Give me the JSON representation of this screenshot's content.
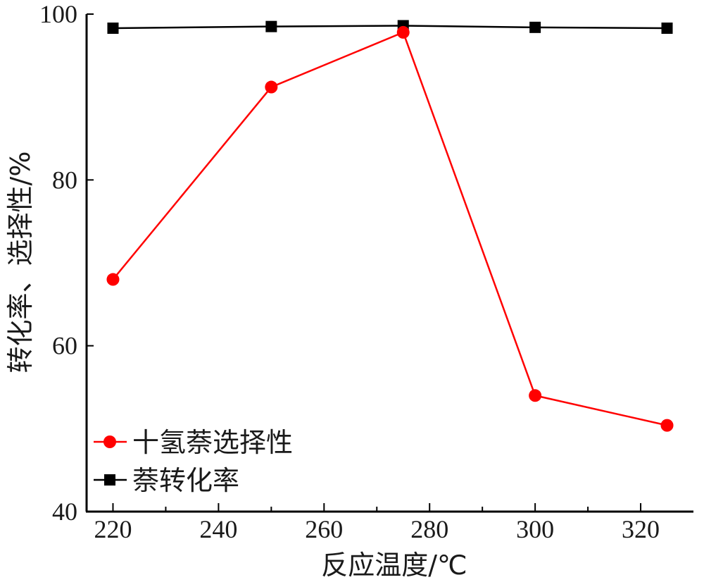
{
  "chart_data": {
    "type": "line",
    "xlabel": "反应温度/℃",
    "ylabel": "转化率、选择性/%",
    "xlim": [
      215,
      330
    ],
    "ylim": [
      40,
      100
    ],
    "x_ticks": [
      "220",
      "240",
      "260",
      "280",
      "300",
      "320"
    ],
    "y_ticks": [
      "40",
      "60",
      "80",
      "100"
    ],
    "x_tick_values": [
      220,
      240,
      260,
      280,
      300,
      320
    ],
    "y_tick_values": [
      40,
      60,
      80,
      100
    ],
    "x_minor_ticks": [
      230,
      250,
      270,
      290,
      310
    ],
    "grid": false,
    "legend_position": "bottom-left",
    "series": [
      {
        "name": "十氢萘选择性",
        "color": "#ff0000",
        "marker": "circle",
        "x": [
          220,
          250,
          275,
          300,
          325
        ],
        "y": [
          68.0,
          91.2,
          97.8,
          54.0,
          50.4
        ]
      },
      {
        "name": "萘转化率",
        "color": "#000000",
        "marker": "square",
        "x": [
          220,
          250,
          275,
          300,
          325
        ],
        "y": [
          98.3,
          98.5,
          98.6,
          98.4,
          98.3
        ]
      }
    ]
  }
}
